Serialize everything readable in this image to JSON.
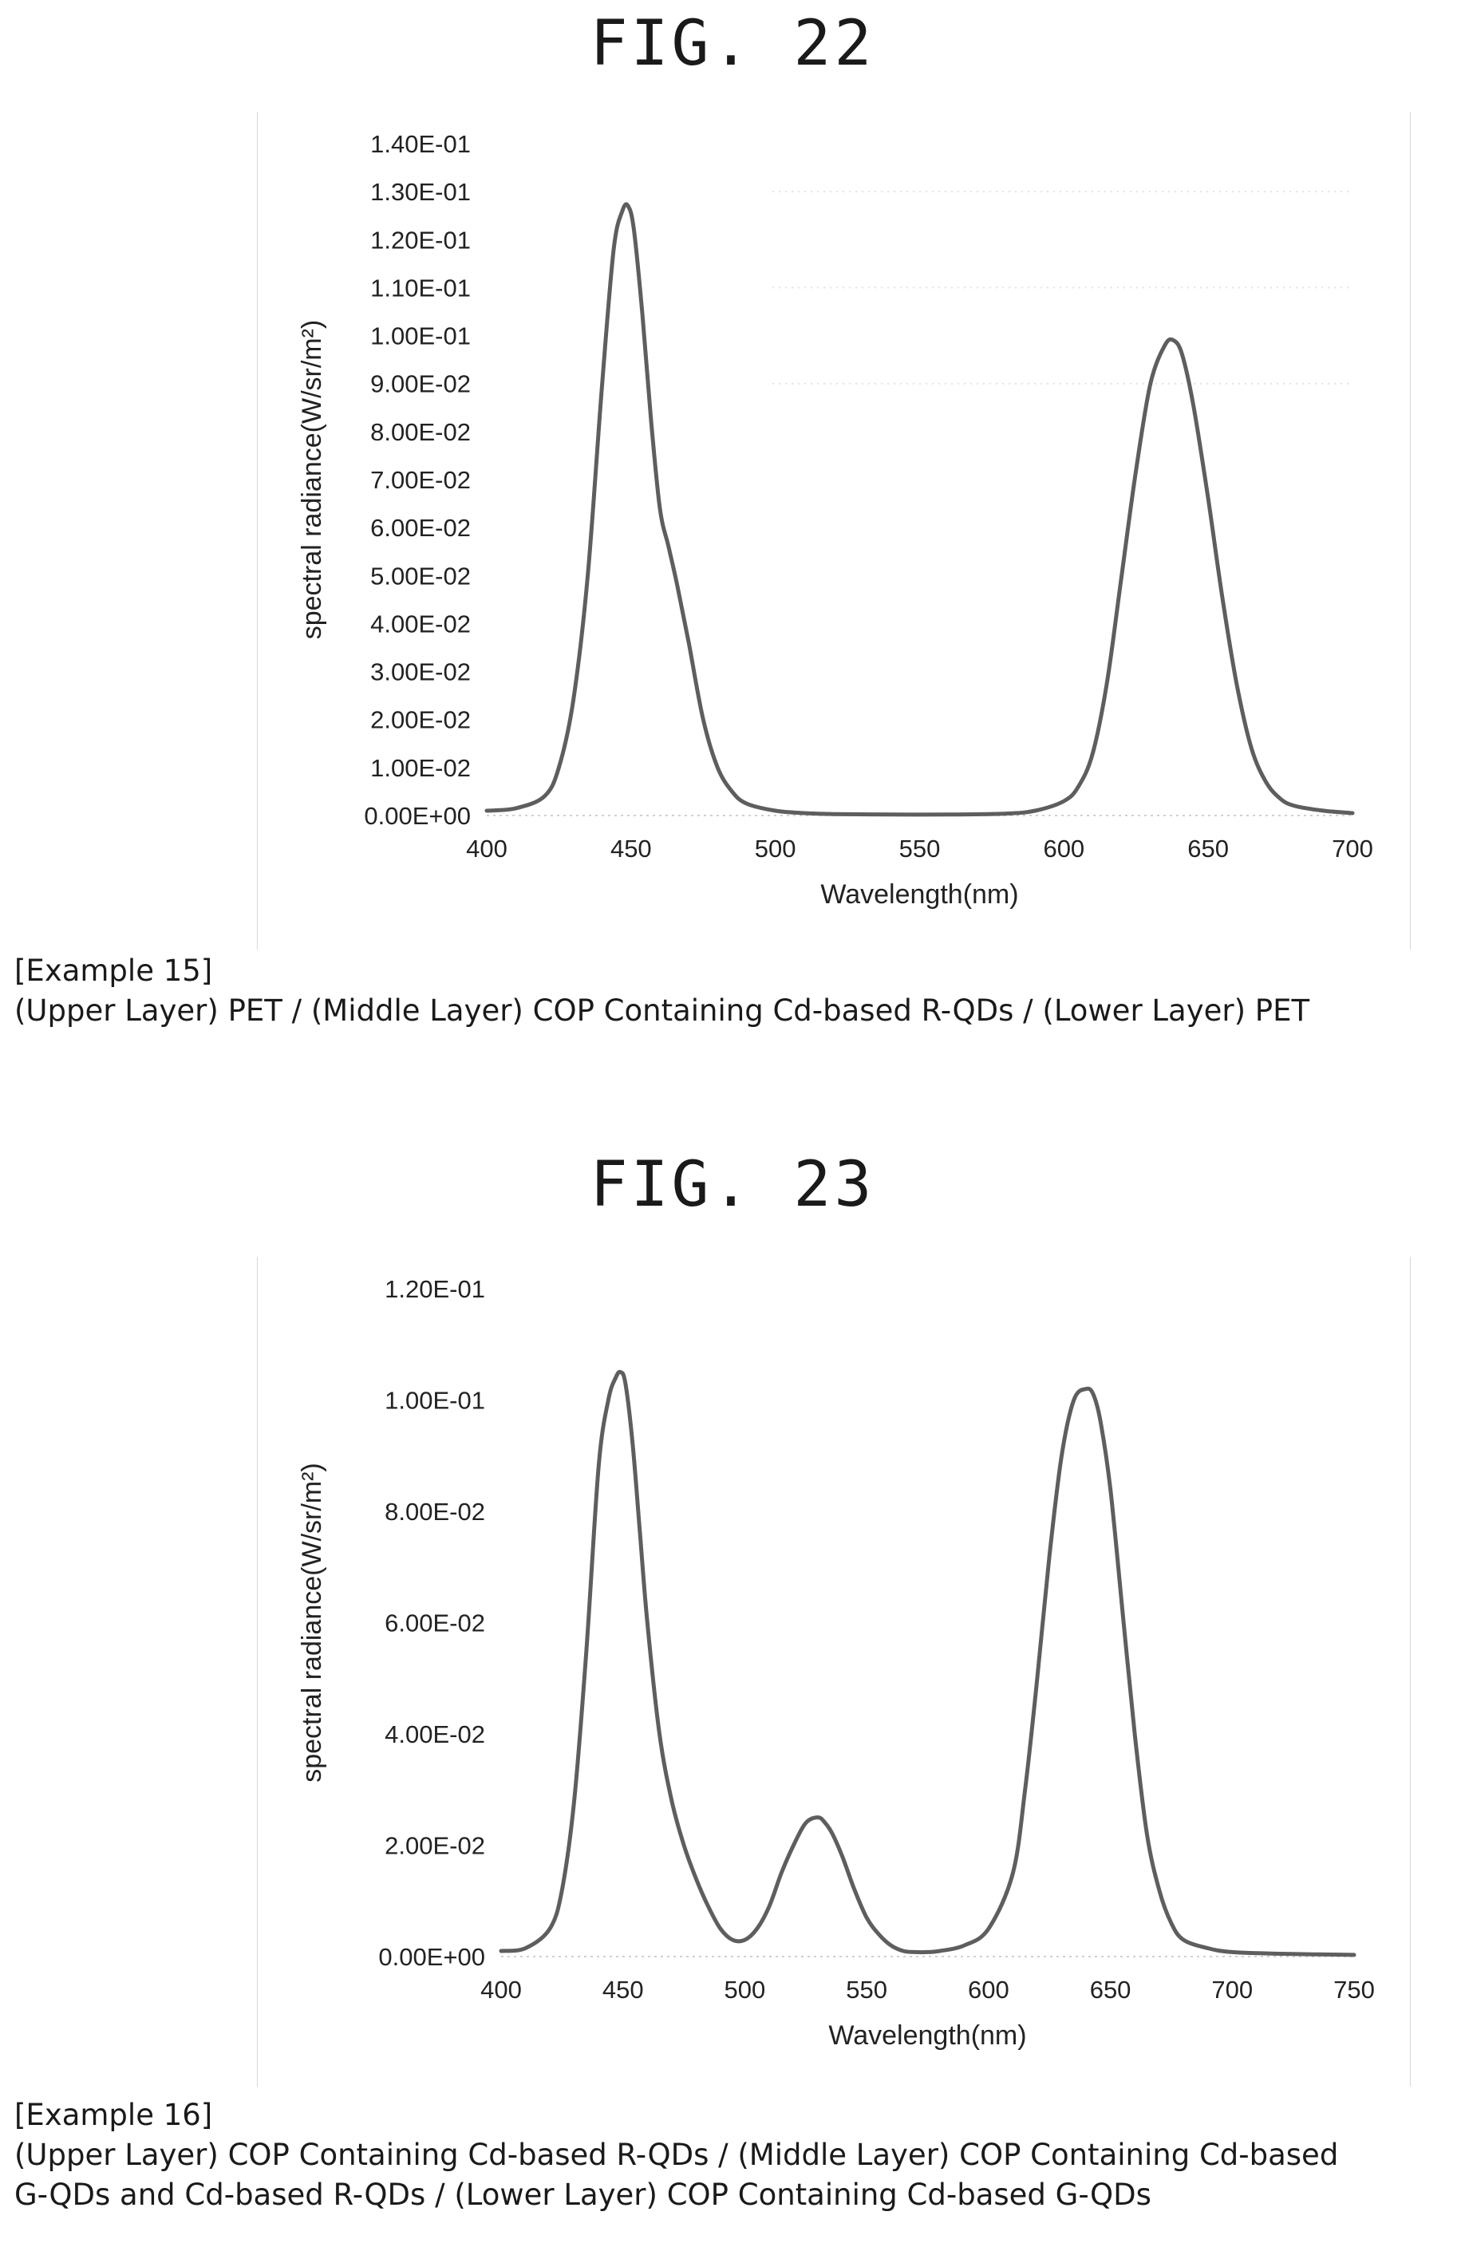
{
  "figures": [
    {
      "fig_label": "FIG. 22",
      "caption_title": "[Example 15]",
      "caption_lines": [
        "(Upper Layer) PET / (Middle Layer) COP Containing Cd-based R-QDs / (Lower Layer) PET"
      ]
    },
    {
      "fig_label": "FIG. 23",
      "caption_title": "[Example 16]",
      "caption_lines": [
        "(Upper Layer) COP Containing Cd-based R-QDs / (Middle Layer) COP Containing Cd-based",
        "G-QDs and Cd-based R-QDs / (Lower Layer) COP Containing Cd-based G-QDs"
      ]
    }
  ],
  "chart_data": [
    {
      "type": "line",
      "title": "",
      "xlabel": "Wavelength(nm)",
      "ylabel": "spectral radiance(W/sr/m²)",
      "xlim": [
        400,
        700
      ],
      "ylim": [
        0,
        0.14
      ],
      "x_ticks": [
        400,
        450,
        500,
        550,
        600,
        650,
        700
      ],
      "x_tick_labels": [
        "400",
        "450",
        "500",
        "550",
        "600",
        "650",
        "700"
      ],
      "y_ticks": [
        0,
        0.01,
        0.02,
        0.03,
        0.04,
        0.05,
        0.06,
        0.07,
        0.08,
        0.09,
        0.1,
        0.11,
        0.12,
        0.13,
        0.14
      ],
      "y_tick_labels": [
        "0.00E+00",
        "1.00E-02",
        "2.00E-02",
        "3.00E-02",
        "4.00E-02",
        "5.00E-02",
        "6.00E-02",
        "7.00E-02",
        "8.00E-02",
        "9.00E-02",
        "1.00E-01",
        "1.10E-01",
        "1.20E-01",
        "1.30E-01",
        "1.40E-01"
      ],
      "grid": false,
      "series": [
        {
          "color": "#5e5e5e",
          "x": [
            400,
            410,
            420,
            425,
            430,
            435,
            440,
            444,
            447,
            449,
            451,
            454,
            457,
            460,
            463,
            466,
            470,
            475,
            480,
            485,
            490,
            500,
            510,
            520,
            540,
            560,
            580,
            590,
            600,
            605,
            610,
            615,
            620,
            625,
            630,
            635,
            638,
            641,
            645,
            650,
            655,
            660,
            665,
            670,
            675,
            680,
            690,
            700
          ],
          "y": [
            0.001,
            0.0015,
            0.004,
            0.01,
            0.024,
            0.05,
            0.09,
            0.118,
            0.126,
            0.127,
            0.122,
            0.104,
            0.082,
            0.064,
            0.056,
            0.048,
            0.036,
            0.02,
            0.01,
            0.005,
            0.0025,
            0.001,
            0.0005,
            0.0003,
            0.0002,
            0.0002,
            0.0004,
            0.001,
            0.003,
            0.006,
            0.013,
            0.028,
            0.05,
            0.072,
            0.09,
            0.098,
            0.099,
            0.096,
            0.085,
            0.066,
            0.045,
            0.027,
            0.014,
            0.007,
            0.0035,
            0.002,
            0.001,
            0.0005
          ]
        }
      ]
    },
    {
      "type": "line",
      "title": "",
      "xlabel": "Wavelength(nm)",
      "ylabel": "spectral radiance(W/sr/m²)",
      "xlim": [
        400,
        750
      ],
      "ylim": [
        0,
        0.12
      ],
      "x_ticks": [
        400,
        450,
        500,
        550,
        600,
        650,
        700,
        750
      ],
      "x_tick_labels": [
        "400",
        "450",
        "500",
        "550",
        "600",
        "650",
        "700",
        "750"
      ],
      "y_ticks": [
        0,
        0.02,
        0.04,
        0.06,
        0.08,
        0.1,
        0.12
      ],
      "y_tick_labels": [
        "0.00E+00",
        "2.00E-02",
        "4.00E-02",
        "6.00E-02",
        "8.00E-02",
        "1.00E-01",
        "1.20E-01"
      ],
      "grid": false,
      "series": [
        {
          "color": "#5e5e5e",
          "x": [
            400,
            410,
            420,
            425,
            430,
            435,
            440,
            444,
            447,
            449,
            451,
            454,
            457,
            460,
            465,
            470,
            475,
            480,
            485,
            490,
            495,
            500,
            505,
            510,
            515,
            520,
            525,
            530,
            533,
            536,
            540,
            545,
            550,
            555,
            560,
            565,
            570,
            575,
            580,
            590,
            600,
            610,
            615,
            620,
            625,
            630,
            635,
            640,
            643,
            646,
            650,
            655,
            660,
            665,
            670,
            675,
            680,
            690,
            700,
            720,
            750
          ],
          "y": [
            0.001,
            0.0015,
            0.005,
            0.012,
            0.028,
            0.055,
            0.088,
            0.1,
            0.104,
            0.105,
            0.103,
            0.092,
            0.076,
            0.06,
            0.04,
            0.028,
            0.02,
            0.014,
            0.009,
            0.005,
            0.003,
            0.003,
            0.005,
            0.009,
            0.015,
            0.02,
            0.024,
            0.025,
            0.024,
            0.022,
            0.018,
            0.012,
            0.007,
            0.004,
            0.002,
            0.001,
            0.0008,
            0.0008,
            0.001,
            0.002,
            0.005,
            0.015,
            0.03,
            0.05,
            0.072,
            0.09,
            0.1,
            0.102,
            0.101,
            0.096,
            0.084,
            0.062,
            0.04,
            0.022,
            0.012,
            0.006,
            0.003,
            0.0015,
            0.0008,
            0.0005,
            0.0003
          ]
        }
      ]
    }
  ]
}
